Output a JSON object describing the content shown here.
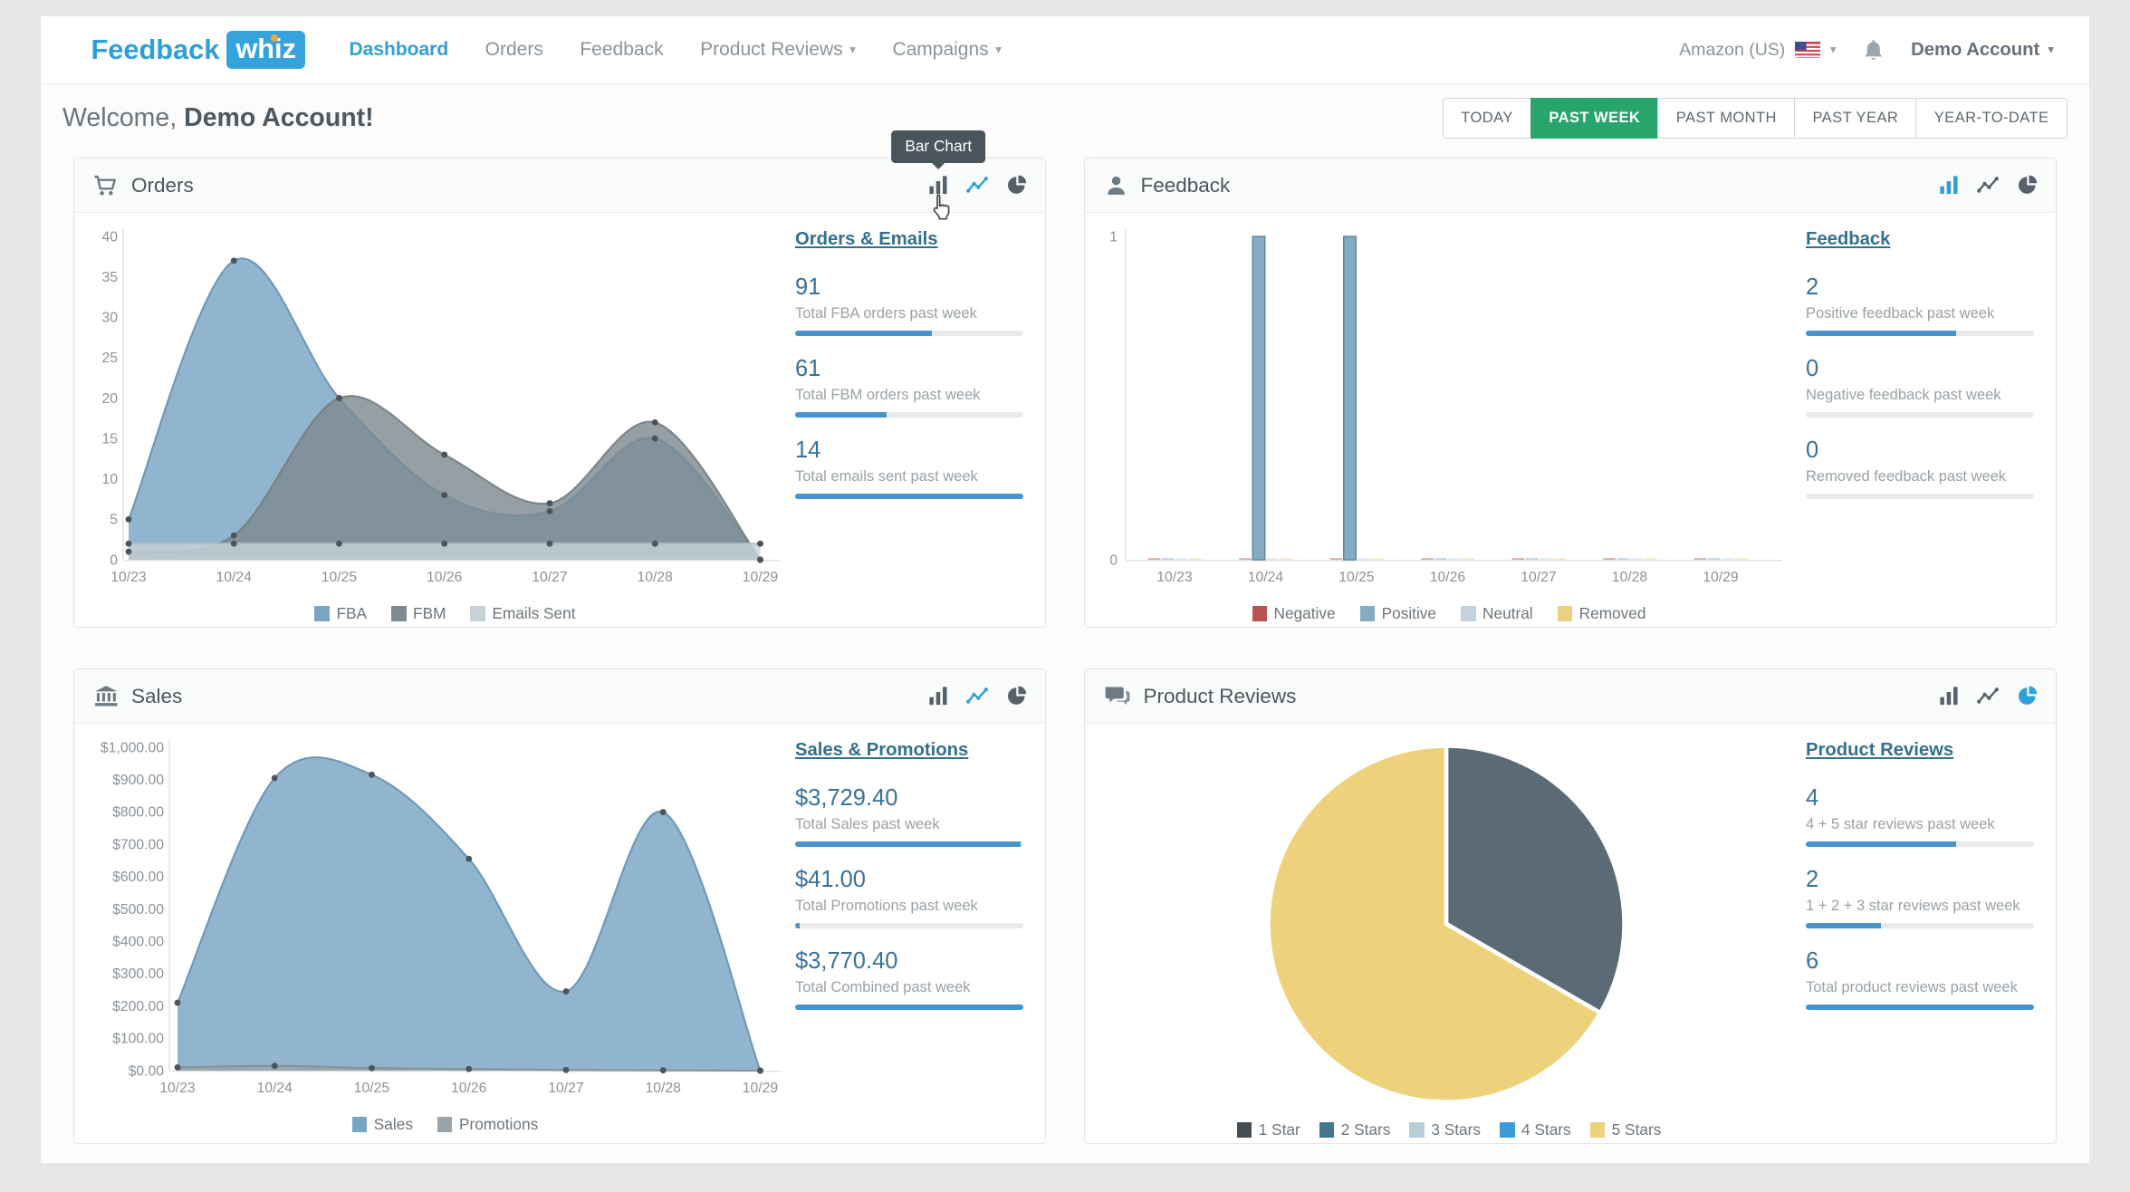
{
  "brand": {
    "name_left": "Feedback",
    "name_right": "whiz",
    "accent": "#2f9fd9",
    "dot_color": "#f2a33c"
  },
  "navbar": {
    "items": [
      {
        "label": "Dashboard"
      },
      {
        "label": "Orders"
      },
      {
        "label": "Feedback"
      },
      {
        "label": "Product Reviews"
      },
      {
        "label": "Campaigns"
      }
    ],
    "marketplace": "Amazon (US)",
    "account": "Demo Account"
  },
  "welcome": {
    "prefix": "Welcome,",
    "account_name": "Demo Account!"
  },
  "range_buttons": [
    {
      "label": "TODAY"
    },
    {
      "label": "PAST WEEK",
      "active": true
    },
    {
      "label": "PAST MONTH"
    },
    {
      "label": "PAST YEAR"
    },
    {
      "label": "YEAR-TO-DATE"
    }
  ],
  "tooltip": {
    "label": "Bar Chart"
  },
  "panels": {
    "orders": {
      "title": "Orders",
      "stats_heading": "Orders & Emails",
      "stats": [
        {
          "value": "91",
          "label": "Total FBA orders past week",
          "progress": 0.6
        },
        {
          "value": "61",
          "label": "Total FBM orders past week",
          "progress": 0.4
        },
        {
          "value": "14",
          "label": "Total emails sent past week",
          "progress": 1
        }
      ]
    },
    "feedback": {
      "title": "Feedback",
      "stats_heading": "Feedback",
      "stats": [
        {
          "value": "2",
          "label": "Positive feedback past week",
          "progress": 0.66
        },
        {
          "value": "0",
          "label": "Negative feedback past week",
          "progress": 0
        },
        {
          "value": "0",
          "label": "Removed feedback past week",
          "progress": 0
        }
      ]
    },
    "sales": {
      "title": "Sales",
      "stats_heading": "Sales & Promotions",
      "stats": [
        {
          "value": "$3,729.40",
          "label": "Total Sales past week",
          "progress": 0.99
        },
        {
          "value": "$41.00",
          "label": "Total Promotions past week",
          "progress": 0.02
        },
        {
          "value": "$3,770.40",
          "label": "Total Combined past week",
          "progress": 1
        }
      ]
    },
    "reviews": {
      "title": "Product Reviews",
      "stats_heading": "Product Reviews",
      "stats": [
        {
          "value": "4",
          "label": "4 + 5 star reviews past week",
          "progress": 0.66
        },
        {
          "value": "2",
          "label": "1 + 2 + 3 star reviews past week",
          "progress": 0.33
        },
        {
          "value": "6",
          "label": "Total product reviews past week",
          "progress": 1
        }
      ]
    }
  },
  "chart_data": {
    "orders": {
      "type": "area",
      "title": "Orders",
      "categories": [
        "10/23",
        "10/24",
        "10/25",
        "10/26",
        "10/27",
        "10/28",
        "10/29"
      ],
      "ylim": [
        0,
        40
      ],
      "yticks": [
        {
          "v": 0,
          "t": "0"
        },
        {
          "v": 5,
          "t": "5"
        },
        {
          "v": 10,
          "t": "10"
        },
        {
          "v": 15,
          "t": "15"
        },
        {
          "v": 20,
          "t": "20"
        },
        {
          "v": 25,
          "t": "25"
        },
        {
          "v": 30,
          "t": "30"
        },
        {
          "v": 35,
          "t": "35"
        },
        {
          "v": 40,
          "t": "40"
        }
      ],
      "series": [
        {
          "name": "FBA",
          "color": "#79a5c5",
          "stroke": "#6691b1",
          "values": [
            5,
            37,
            20,
            8,
            6,
            15,
            0
          ]
        },
        {
          "name": "FBM",
          "color": "#7f8a90",
          "stroke": "#737d83",
          "values": [
            1,
            3,
            20,
            13,
            7,
            17,
            0
          ]
        },
        {
          "name": "Emails Sent",
          "color": "#c6d2d8",
          "stroke": "#b3bfc5",
          "values": [
            2,
            2,
            2,
            2,
            2,
            2,
            2
          ]
        }
      ]
    },
    "feedback": {
      "type": "bar",
      "title": "Feedback",
      "categories": [
        "10/23",
        "10/24",
        "10/25",
        "10/26",
        "10/27",
        "10/28",
        "10/29"
      ],
      "ylim": [
        0,
        1
      ],
      "yticks": [
        {
          "v": 0,
          "t": "0"
        },
        {
          "v": 1,
          "t": "1"
        }
      ],
      "series": [
        {
          "name": "Negative",
          "color": "#b85450",
          "stroke": "#9e413e",
          "values": [
            0,
            0,
            0,
            0,
            0,
            0,
            0
          ]
        },
        {
          "name": "Positive",
          "color": "#84abc2",
          "stroke": "#5d89a2",
          "values": [
            0,
            1,
            1,
            0,
            0,
            0,
            0
          ]
        },
        {
          "name": "Neutral",
          "color": "#c2d3dd",
          "stroke": "#a8bfcc",
          "values": [
            0,
            0,
            0,
            0,
            0,
            0,
            0
          ]
        },
        {
          "name": "Removed",
          "color": "#e9d382",
          "stroke": "#d4bc60",
          "values": [
            0,
            0,
            0,
            0,
            0,
            0,
            0
          ]
        }
      ]
    },
    "sales": {
      "type": "area",
      "title": "Sales",
      "categories": [
        "10/23",
        "10/24",
        "10/25",
        "10/26",
        "10/27",
        "10/28",
        "10/29"
      ],
      "ylim": [
        0,
        1000
      ],
      "yticks": [
        {
          "v": 0,
          "t": "$0.00"
        },
        {
          "v": 100,
          "t": "$100.00"
        },
        {
          "v": 200,
          "t": "$200.00"
        },
        {
          "v": 300,
          "t": "$300.00"
        },
        {
          "v": 400,
          "t": "$400.00"
        },
        {
          "v": 500,
          "t": "$500.00"
        },
        {
          "v": 600,
          "t": "$600.00"
        },
        {
          "v": 700,
          "t": "$700.00"
        },
        {
          "v": 800,
          "t": "$800.00"
        },
        {
          "v": 900,
          "t": "$900.00"
        },
        {
          "v": 1000,
          "t": "$1,000.00"
        }
      ],
      "series": [
        {
          "name": "Sales",
          "color": "#79a5c5",
          "stroke": "#6691b1",
          "values": [
            210,
            905,
            915,
            655,
            245,
            799.4,
            0
          ]
        },
        {
          "name": "Promotions",
          "color": "#99a3a8",
          "stroke": "#878f94",
          "values": [
            10,
            15,
            8,
            5,
            2,
            1,
            0
          ]
        }
      ]
    },
    "reviews": {
      "type": "pie",
      "title": "Product Reviews",
      "slices": [
        {
          "label": "1 Star",
          "value": 2,
          "color": "#5b6b76"
        },
        {
          "label": "5 Stars",
          "value": 4,
          "color": "#edd27b"
        }
      ],
      "legend": [
        {
          "label": "1 Star",
          "color": "#454d53"
        },
        {
          "label": "2 Stars",
          "color": "#44778f"
        },
        {
          "label": "3 Stars",
          "color": "#b7cdd9"
        },
        {
          "label": "4 Stars",
          "color": "#3d9bd9"
        },
        {
          "label": "5 Stars",
          "color": "#edd27b"
        }
      ]
    }
  }
}
